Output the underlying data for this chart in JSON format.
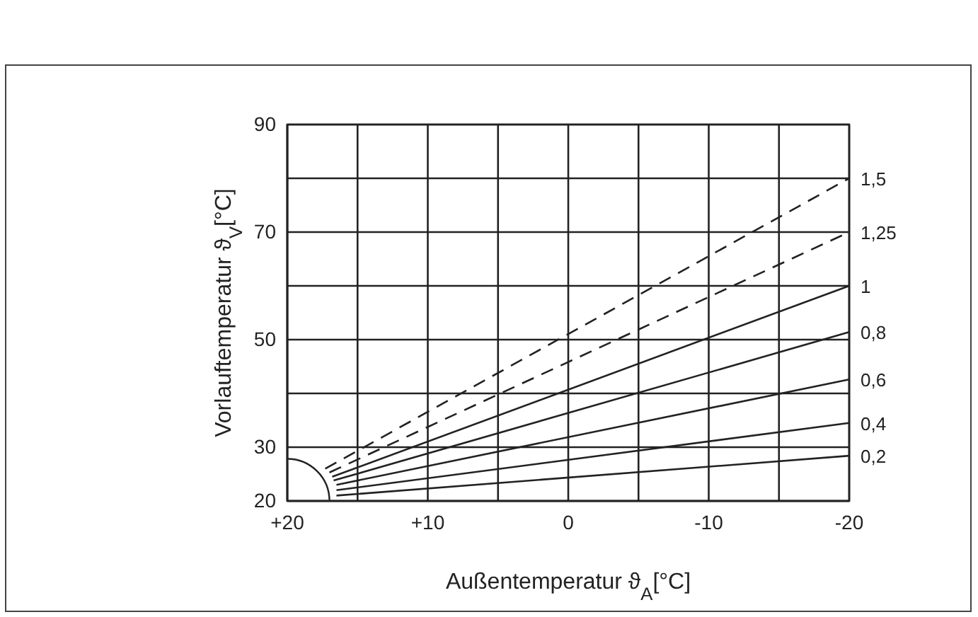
{
  "chart_data": {
    "type": "line",
    "xlabel": "Außentemperatur ϑ$_{A}$[°C]",
    "ylabel": "Vorlauftemperatur ϑ$_{V}$[°C]",
    "xlim": [
      20,
      -20
    ],
    "ylim": [
      20,
      90
    ],
    "xticks": [
      {
        "value": 20,
        "label": "+20"
      },
      {
        "value": 15,
        "label": null
      },
      {
        "value": 10,
        "label": "+10"
      },
      {
        "value": 5,
        "label": null
      },
      0,
      {
        "value": -5,
        "label": null
      },
      -10,
      {
        "value": -15,
        "label": null
      },
      -20
    ],
    "yticks": [
      20,
      30,
      {
        "value": 40,
        "label": null
      },
      50,
      {
        "value": 60,
        "label": null
      },
      70,
      {
        "value": 80,
        "label": null
      },
      90
    ],
    "grid": true,
    "legend": false,
    "marker": "none",
    "series": [
      {
        "name": "1,5",
        "color": "#222222",
        "line_style": "dashed",
        "x": [
          17.3,
          -20
        ],
        "values": [
          26,
          80
        ]
      },
      {
        "name": "1,25",
        "color": "#222222",
        "line_style": "dashed",
        "x": [
          17,
          -20
        ],
        "values": [
          25.3,
          70
        ]
      },
      {
        "name": "1",
        "color": "#222222",
        "line_style": "solid",
        "x": [
          16.8,
          -20
        ],
        "values": [
          24.5,
          60
        ]
      },
      {
        "name": "0,8",
        "color": "#222222",
        "line_style": "solid",
        "x": [
          16.7,
          -20
        ],
        "values": [
          23.8,
          51.4
        ]
      },
      {
        "name": "0,6",
        "color": "#222222",
        "line_style": "solid",
        "x": [
          16.5,
          -20
        ],
        "values": [
          23,
          42.6
        ]
      },
      {
        "name": "0,4",
        "color": "#222222",
        "line_style": "solid",
        "x": [
          16.5,
          -20
        ],
        "values": [
          22,
          34.5
        ]
      },
      {
        "name": "0,2",
        "color": "#222222",
        "line_style": "solid",
        "x": [
          16.5,
          -20
        ],
        "values": [
          21,
          28.4
        ]
      }
    ]
  }
}
